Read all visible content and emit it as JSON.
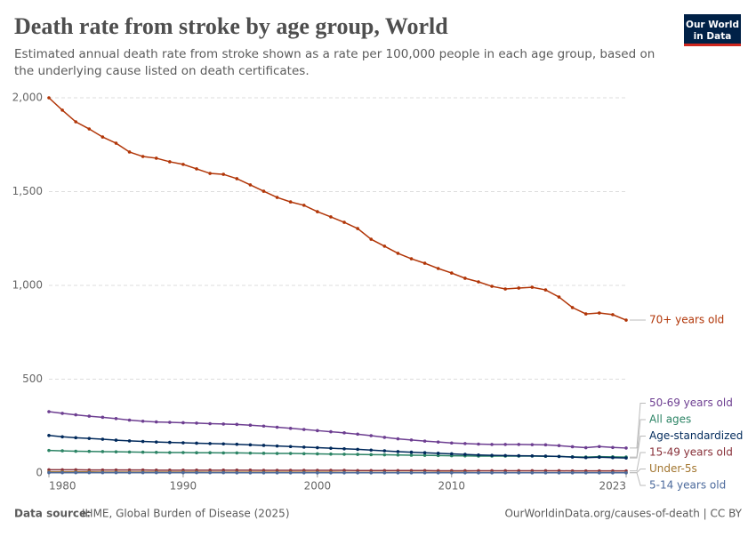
{
  "header": {
    "title": "Death rate from stroke by age group, World",
    "subtitle": "Estimated annual death rate from stroke shown as a rate per 100,000 people in each age group, based on the underlying cause listed on death certificates.",
    "logo": [
      "Our World",
      "in Data"
    ]
  },
  "chart_data": {
    "type": "line",
    "x": [
      1980,
      1981,
      1982,
      1983,
      1984,
      1985,
      1986,
      1987,
      1988,
      1989,
      1990,
      1991,
      1992,
      1993,
      1994,
      1995,
      1996,
      1997,
      1998,
      1999,
      2000,
      2001,
      2002,
      2003,
      2004,
      2005,
      2006,
      2007,
      2008,
      2009,
      2010,
      2011,
      2012,
      2013,
      2014,
      2015,
      2016,
      2017,
      2018,
      2019,
      2020,
      2021,
      2022,
      2023
    ],
    "xlim": [
      1980,
      2023
    ],
    "xticks": [
      1980,
      1990,
      2000,
      2010,
      2023
    ],
    "ylim": [
      0,
      2000
    ],
    "yticks": [
      0,
      500,
      {
        "value": 1000,
        "label": "1,000"
      },
      {
        "value": 1500,
        "label": "1,500"
      },
      {
        "value": 2000,
        "label": "2,000"
      }
    ],
    "grid": true,
    "series": [
      {
        "name": "70+ years old",
        "color": "#b13507",
        "values": [
          2000,
          1934,
          1872,
          1834,
          1791,
          1758,
          1711,
          1687,
          1678,
          1659,
          1645,
          1621,
          1597,
          1592,
          1569,
          1536,
          1502,
          1469,
          1445,
          1427,
          1393,
          1365,
          1336,
          1303,
          1246,
          1209,
          1171,
          1142,
          1118,
          1090,
          1066,
          1038,
          1019,
          995,
          981,
          986,
          990,
          976,
          938,
          882,
          848,
          853,
          844,
          815
        ]
      },
      {
        "name": "50-69 years old",
        "color": "#6d3e91",
        "values": [
          327,
          318,
          310,
          303,
          297,
          290,
          282,
          276,
          272,
          270,
          268,
          266,
          263,
          261,
          259,
          255,
          250,
          244,
          238,
          232,
          226,
          220,
          214,
          207,
          199,
          190,
          182,
          176,
          170,
          165,
          160,
          157,
          154,
          152,
          152,
          152,
          151,
          150,
          146,
          140,
          135,
          141,
          136,
          133
        ]
      },
      {
        "name": "All ages",
        "color": "#2c8465",
        "values": [
          120,
          118,
          116,
          115,
          114,
          113,
          112,
          111,
          110,
          109,
          109,
          108,
          108,
          107,
          107,
          106,
          105,
          104,
          104,
          103,
          102,
          101,
          100,
          99,
          98,
          97,
          96,
          95,
          94,
          93,
          92,
          91,
          90,
          90,
          90,
          90,
          90,
          89,
          88,
          86,
          85,
          87,
          86,
          85
        ]
      },
      {
        "name": "Age-standardized",
        "color": "#00295b",
        "values": [
          200,
          193,
          188,
          184,
          180,
          175,
          171,
          168,
          165,
          163,
          161,
          159,
          157,
          155,
          153,
          150,
          147,
          144,
          141,
          138,
          135,
          132,
          129,
          126,
          122,
          118,
          114,
          111,
          108,
          105,
          102,
          99,
          96,
          94,
          93,
          92,
          91,
          90,
          88,
          85,
          82,
          84,
          82,
          80
        ]
      },
      {
        "name": "15-49 years old",
        "color": "#883039",
        "values": [
          17,
          17,
          17,
          16,
          16,
          16,
          16,
          16,
          15,
          15,
          15,
          15,
          15,
          15,
          15,
          15,
          14,
          14,
          14,
          14,
          14,
          14,
          14,
          13,
          13,
          13,
          13,
          13,
          13,
          12,
          12,
          12,
          12,
          12,
          12,
          12,
          12,
          12,
          12,
          11,
          11,
          11,
          11,
          11
        ]
      },
      {
        "name": "Under-5s",
        "color": "#a2752f",
        "values": [
          6,
          6,
          6,
          6,
          5,
          5,
          5,
          5,
          5,
          5,
          5,
          5,
          4,
          4,
          4,
          4,
          4,
          4,
          4,
          4,
          4,
          4,
          3,
          3,
          3,
          3,
          3,
          3,
          3,
          3,
          3,
          3,
          2,
          2,
          2,
          2,
          2,
          2,
          2,
          2,
          2,
          2,
          2,
          2
        ]
      },
      {
        "name": "5-14 years old",
        "color": "#4c6a9c",
        "values": [
          2,
          2,
          2,
          2,
          2,
          2,
          2,
          2,
          2,
          2,
          2,
          2,
          2,
          2,
          1,
          1,
          1,
          1,
          1,
          1,
          1,
          1,
          1,
          1,
          1,
          1,
          1,
          1,
          1,
          1,
          1,
          1,
          1,
          1,
          1,
          1,
          1,
          1,
          1,
          1,
          1,
          1,
          1,
          1
        ]
      }
    ]
  },
  "footer": {
    "source_label": "Data source:",
    "source": "IHME, Global Burden of Disease (2025)",
    "url": "OurWorldinData.org/causes-of-death | CC BY"
  }
}
